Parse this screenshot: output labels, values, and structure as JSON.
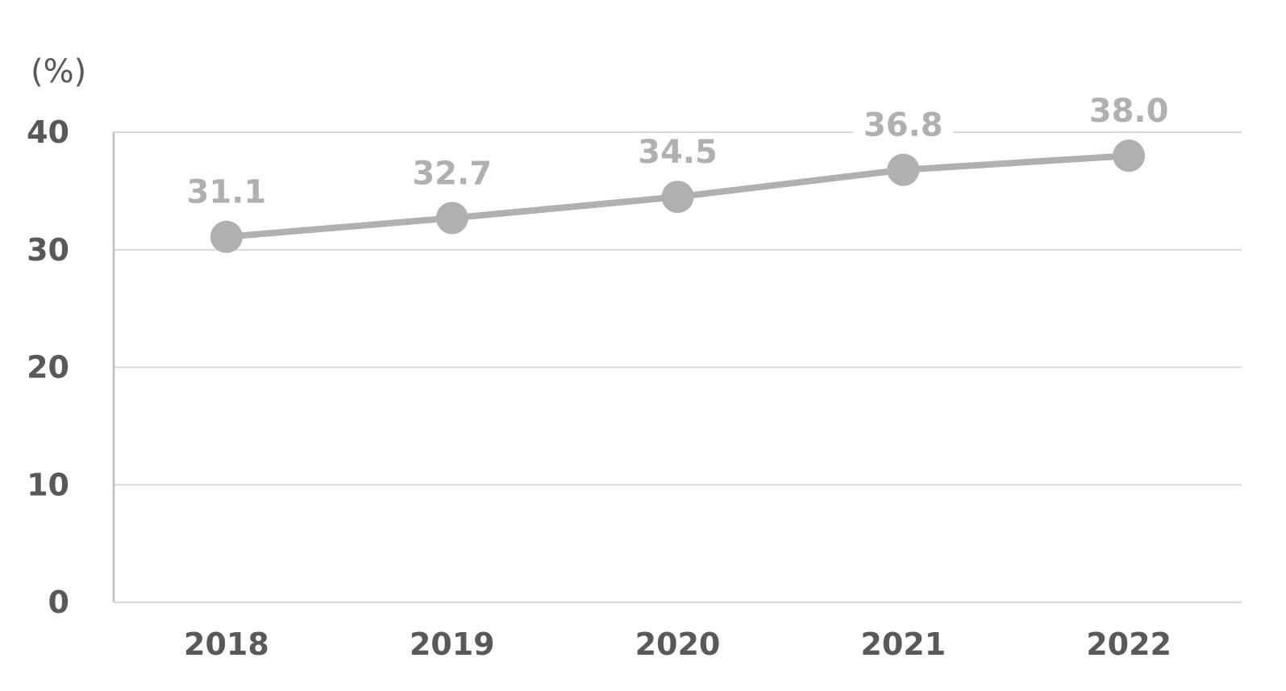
{
  "chart_data": {
    "type": "line",
    "unit_label": "(%)",
    "categories": [
      "2018",
      "2019",
      "2020",
      "2021",
      "2022"
    ],
    "series": [
      {
        "values": [
          31.1,
          32.7,
          34.5,
          36.8,
          38.0
        ],
        "data_labels": [
          "31.1",
          "32.7",
          "34.5",
          "36.8",
          "38.0"
        ],
        "color": "#b0b0b0"
      }
    ],
    "ylim": [
      0,
      40
    ],
    "y_ticks": [
      0,
      10,
      20,
      30,
      40
    ],
    "y_tick_labels": [
      "0",
      "10",
      "20",
      "30",
      "40"
    ],
    "grid": true,
    "legend": "none",
    "xlabel": "",
    "ylabel": "",
    "title": ""
  },
  "colors": {
    "axis_text": "#595959",
    "gridline": "#d9d9d9",
    "axis_line": "#bfbfbf",
    "series": "#b0b0b0"
  }
}
